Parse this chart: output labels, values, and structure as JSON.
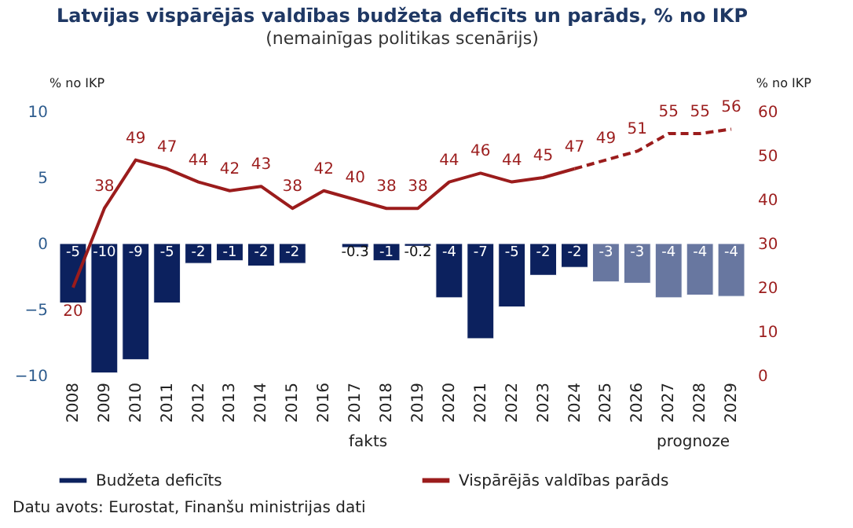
{
  "chart_data": {
    "type": "bar",
    "title": "Latvijas vispārējās valdības budžeta deficīts un parāds, % no IKP",
    "subtitle": "(nemainīgas politikas scenārijs)",
    "ylabel": "% no IKP",
    "y2label": "% no IKP",
    "categories": [
      "2008",
      "2009",
      "2010",
      "2011",
      "2012",
      "2013",
      "2014",
      "2015",
      "2016",
      "2017",
      "2018",
      "2019",
      "2020",
      "2021",
      "2022",
      "2023",
      "2024",
      "2025",
      "2026",
      "2027",
      "2028",
      "2029"
    ],
    "ylim": [
      -10,
      10
    ],
    "yticks": [
      -10,
      -5,
      0,
      5,
      10
    ],
    "y2lim": [
      0,
      60
    ],
    "y2ticks": [
      0,
      10,
      20,
      30,
      40,
      50,
      60
    ],
    "legend": "bottom",
    "series": [
      {
        "name": "Budžeta deficīts",
        "color": "#0c215e",
        "colors": [
          "#0c215e",
          "#0c215e",
          "#0c215e",
          "#0c215e",
          "#0c215e",
          "#0c215e",
          "#0c215e",
          "#0c215e",
          "#0c215e",
          "#0c215e",
          "#0c215e",
          "#0c215e",
          "#0c215e",
          "#0c215e",
          "#0c215e",
          "#0c215e",
          "#0c215e",
          "#6877a0",
          "#6877a0",
          "#6877a0",
          "#6877a0",
          "#6877a0"
        ],
        "values": [
          -4.5,
          -9.8,
          -8.8,
          -4.5,
          -1.5,
          -1.3,
          -1.7,
          -1.5,
          null,
          -0.3,
          -1.3,
          -0.2,
          -4.1,
          -7.2,
          -4.8,
          -2.4,
          -1.8,
          -2.9,
          -3.0,
          -4.1,
          -3.9,
          -4.0
        ],
        "value_labels": [
          "-5",
          "-10",
          "-9",
          "-5",
          "-2",
          "-1",
          "-2",
          "-2",
          null,
          "-0.3",
          "-1",
          "-0.2",
          "-4",
          "-7",
          "-5",
          "-2",
          "-2",
          "-3",
          "-3",
          "-4",
          "-4",
          "-4"
        ]
      },
      {
        "name": "Vispārējās valdības parāds",
        "type": "line",
        "axis": "y2",
        "color": "#9b1c1c",
        "line_style": "solid",
        "values": [
          20,
          38,
          49,
          47,
          44,
          42,
          43,
          38,
          42,
          40,
          38,
          38,
          44,
          46,
          44,
          45,
          47,
          null,
          null,
          null,
          null,
          null
        ],
        "value_labels": [
          "20",
          "38",
          "49",
          "47",
          "44",
          "42",
          "43",
          "38",
          "42",
          "40",
          "38",
          "38",
          "44",
          "46",
          "44",
          "45",
          "47",
          null,
          null,
          null,
          null,
          null
        ]
      },
      {
        "type": "line",
        "axis": "y2",
        "color": "#9b1c1c",
        "line_style": "dashed",
        "values": [
          null,
          null,
          null,
          null,
          null,
          null,
          null,
          null,
          null,
          null,
          null,
          null,
          null,
          null,
          null,
          null,
          47,
          49,
          51,
          55,
          55,
          56
        ],
        "value_labels": [
          null,
          null,
          null,
          null,
          null,
          null,
          null,
          null,
          null,
          null,
          null,
          null,
          null,
          null,
          null,
          null,
          null,
          "49",
          "51",
          "55",
          "55",
          "56"
        ]
      }
    ],
    "annotations": [
      "fakts",
      "prognoze",
      "Datu avots: Eurostat, Finanšu ministrijas dati"
    ]
  }
}
